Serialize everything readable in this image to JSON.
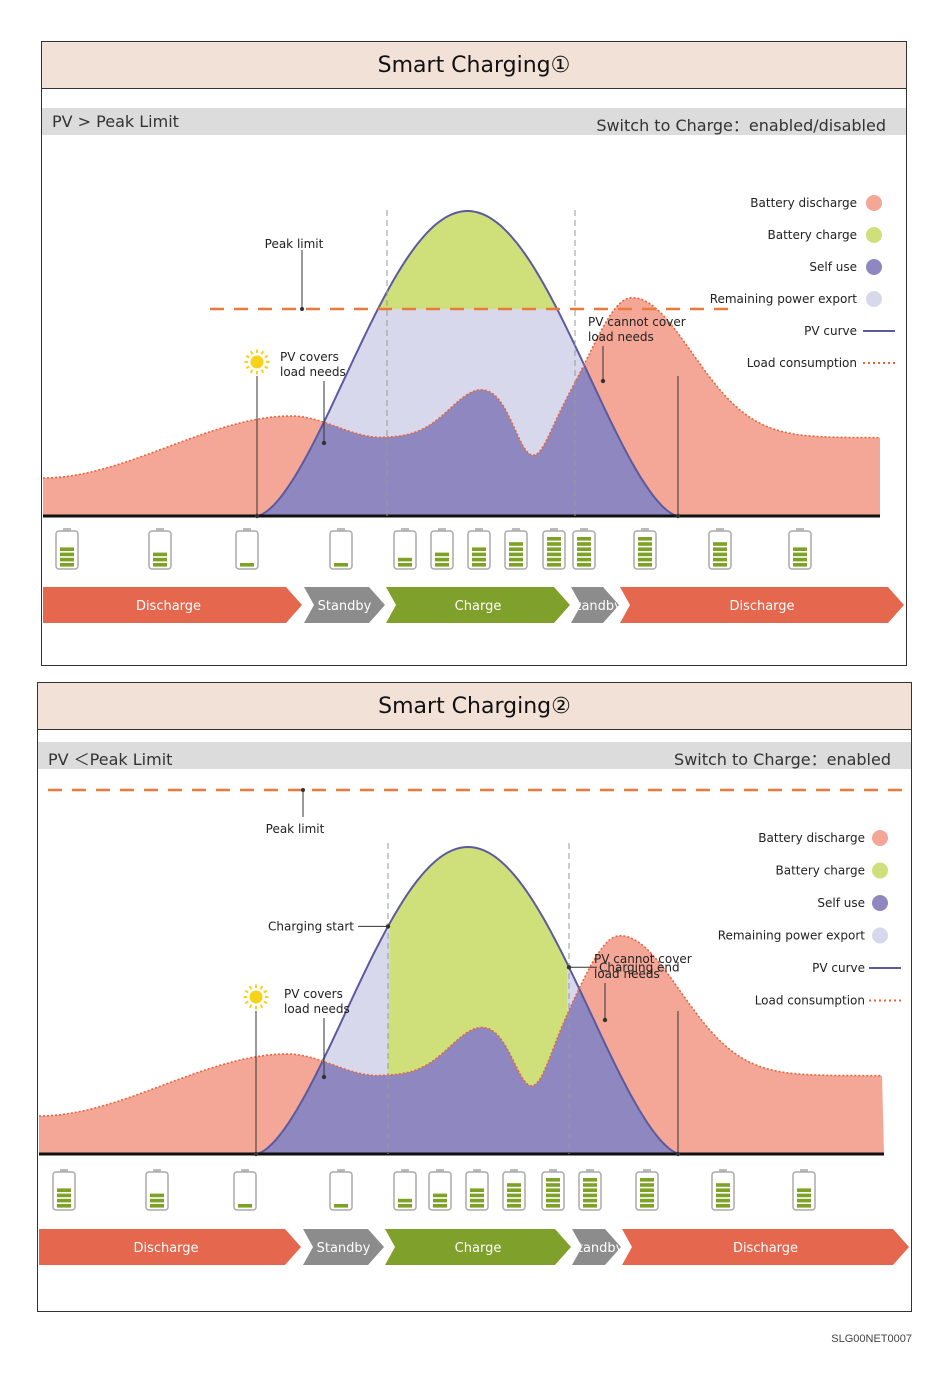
{
  "panels": [
    {
      "title": "Smart Charging①",
      "condition": "PV > Peak Limit",
      "switch": "Switch to Charge：enabled/disabled",
      "peak_label": "Peak limit",
      "annotations": {
        "pv_covers": [
          "PV covers",
          "load needs"
        ],
        "pv_cannot": [
          "PV cannot cover",
          "load needs"
        ]
      },
      "phases": [
        "Discharge",
        "Standby",
        "Charge",
        "Standby",
        "Discharge"
      ],
      "battery_levels": [
        4,
        3,
        1,
        1,
        2,
        3,
        4,
        5,
        6,
        6,
        6,
        5,
        4
      ]
    },
    {
      "title": "Smart Charging②",
      "condition": "PV ＜Peak Limit",
      "switch": "Switch to Charge：enabled",
      "peak_label": "Peak limit",
      "annotations": {
        "charging_start": "Charging start",
        "charging_end": "Charging end",
        "pv_covers": [
          "PV covers",
          "load needs"
        ],
        "pv_cannot": [
          "PV cannot cover",
          "load needs"
        ]
      },
      "phases": [
        "Discharge",
        "Standby",
        "Charge",
        "Standby",
        "Discharge"
      ],
      "battery_levels": [
        4,
        3,
        1,
        1,
        2,
        3,
        4,
        5,
        6,
        6,
        6,
        5,
        4
      ]
    }
  ],
  "legend": [
    {
      "label": "Battery discharge",
      "color": "#f4a797",
      "shape": "dot"
    },
    {
      "label": "Battery charge",
      "color": "#cfe07a",
      "shape": "dot"
    },
    {
      "label": "Self use",
      "color": "#8f87c0",
      "shape": "dot"
    },
    {
      "label": "Remaining power export",
      "color": "#d8d8ec",
      "shape": "dot"
    },
    {
      "label": "PV curve",
      "color": "#5c5a9e",
      "shape": "line"
    },
    {
      "label": "Load consumption",
      "color": "#e8643a",
      "shape": "dotted"
    }
  ],
  "colors": {
    "discharge_area": "#f4a797",
    "charge_area": "#cfe07a",
    "self_use": "#8f87c0",
    "export": "#d8d8ec",
    "pv_line": "#5c5a9e",
    "load_line": "#e8643a",
    "peak_line": "#e87a3a",
    "phase_discharge": "#e4674e",
    "phase_standby": "#8c8c8c",
    "phase_charge": "#7fa02a",
    "battery_bar": "#7da226"
  },
  "doc_id": "SLG00NET0007"
}
